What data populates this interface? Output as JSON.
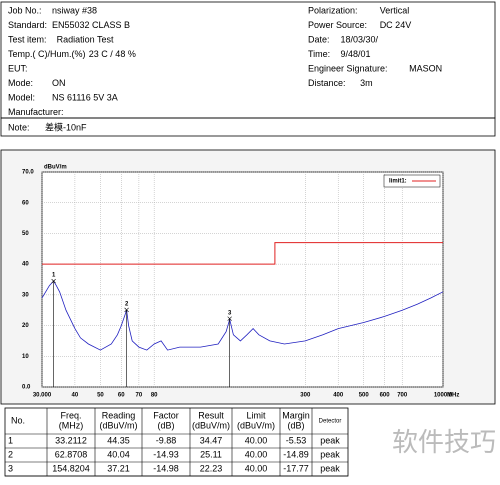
{
  "header": {
    "left": [
      {
        "label": "Job No.:",
        "value": "nsiway #38"
      },
      {
        "label": "Standard:",
        "value": "EN55032 CLASS  B"
      },
      {
        "label": "Test item:",
        "value": "Radiation Test"
      },
      {
        "label": "Temp.( C)/Hum.(%)",
        "value": "23   C / 48 %"
      },
      {
        "label": "EUT:",
        "value": ""
      },
      {
        "label": "Mode:",
        "value": "ON"
      },
      {
        "label": "Model:",
        "value": "NS 61116 5V 3A"
      },
      {
        "label": "Manufacturer:",
        "value": ""
      }
    ],
    "right": [
      {
        "label": "Polarization:",
        "value": "Vertical"
      },
      {
        "label": "Power Source:",
        "value": "DC 24V"
      },
      {
        "label": "Date:",
        "value": "18/03/30/"
      },
      {
        "label": "Time:",
        "value": "9/48/01"
      },
      {
        "label": "Engineer Signature:",
        "value": "MASON"
      },
      {
        "label": "Distance:",
        "value": "3m"
      }
    ]
  },
  "note": {
    "label": "Note:",
    "value": "差模-10nF"
  },
  "chart": {
    "type": "line",
    "ylabel": "dBuV/m",
    "xunit": "MHz",
    "log_x": true,
    "grid": true,
    "xlim": [
      30,
      1000
    ],
    "ylim": [
      0,
      70
    ],
    "xticks": [
      {
        "value": 30,
        "label": "30.000"
      },
      40,
      50,
      60,
      70,
      80,
      300,
      400,
      500,
      600,
      700,
      {
        "value": 1000,
        "label": "1000.0"
      }
    ],
    "yticks": [
      {
        "value": 0,
        "label": "0.0"
      },
      10,
      20,
      30,
      40,
      50,
      60,
      {
        "value": 70,
        "label": "70.0"
      }
    ],
    "series": [
      {
        "color": "#2020c0",
        "x": [
          30,
          31,
          32,
          33.2,
          34,
          35,
          37,
          40,
          42,
          45,
          50,
          55,
          58,
          60,
          62.87,
          64,
          66,
          70,
          75,
          80,
          85,
          90,
          100,
          120,
          140,
          150,
          154.8,
          160,
          170,
          180,
          190,
          200,
          220,
          250,
          300,
          350,
          400,
          500,
          600,
          700,
          800,
          900,
          1000
        ],
        "values": [
          29,
          31,
          33,
          34.5,
          33,
          31,
          25,
          19,
          16,
          14,
          12,
          14,
          17,
          20,
          25,
          20,
          15,
          13,
          12,
          14,
          15,
          12,
          13,
          13,
          14,
          18,
          22,
          17,
          15,
          17,
          19,
          17,
          15,
          14,
          15,
          17,
          19,
          21,
          23,
          25,
          27,
          29,
          31
        ]
      },
      {
        "name": "limit1:",
        "color": "#e02020",
        "x": [
          30,
          230,
          230,
          1000
        ],
        "values": [
          40,
          40,
          47,
          47
        ]
      }
    ],
    "markers": [
      "1",
      "2",
      "3"
    ]
  },
  "table": {
    "columns": [
      [
        "No."
      ],
      [
        "Freq.",
        "(MHz)"
      ],
      [
        "Reading",
        "(dBuV/m)"
      ],
      [
        "Factor",
        "(dB)"
      ],
      [
        "Result",
        "(dBuV/m)"
      ],
      [
        "Limit",
        "(dBuV/m)"
      ],
      [
        "Margin",
        "(dB)"
      ],
      [
        "Detector"
      ]
    ],
    "rows": [
      [
        "1",
        "33.2112",
        "44.35",
        "-9.88",
        "34.47",
        "40.00",
        "-5.53",
        "peak"
      ],
      [
        "2",
        "62.8708",
        "40.04",
        "-14.93",
        "25.11",
        "40.00",
        "-14.89",
        "peak"
      ],
      [
        "3",
        "154.8204",
        "37.21",
        "-14.98",
        "22.23",
        "40.00",
        "-17.77",
        "peak"
      ]
    ]
  },
  "watermark": "软件技巧"
}
